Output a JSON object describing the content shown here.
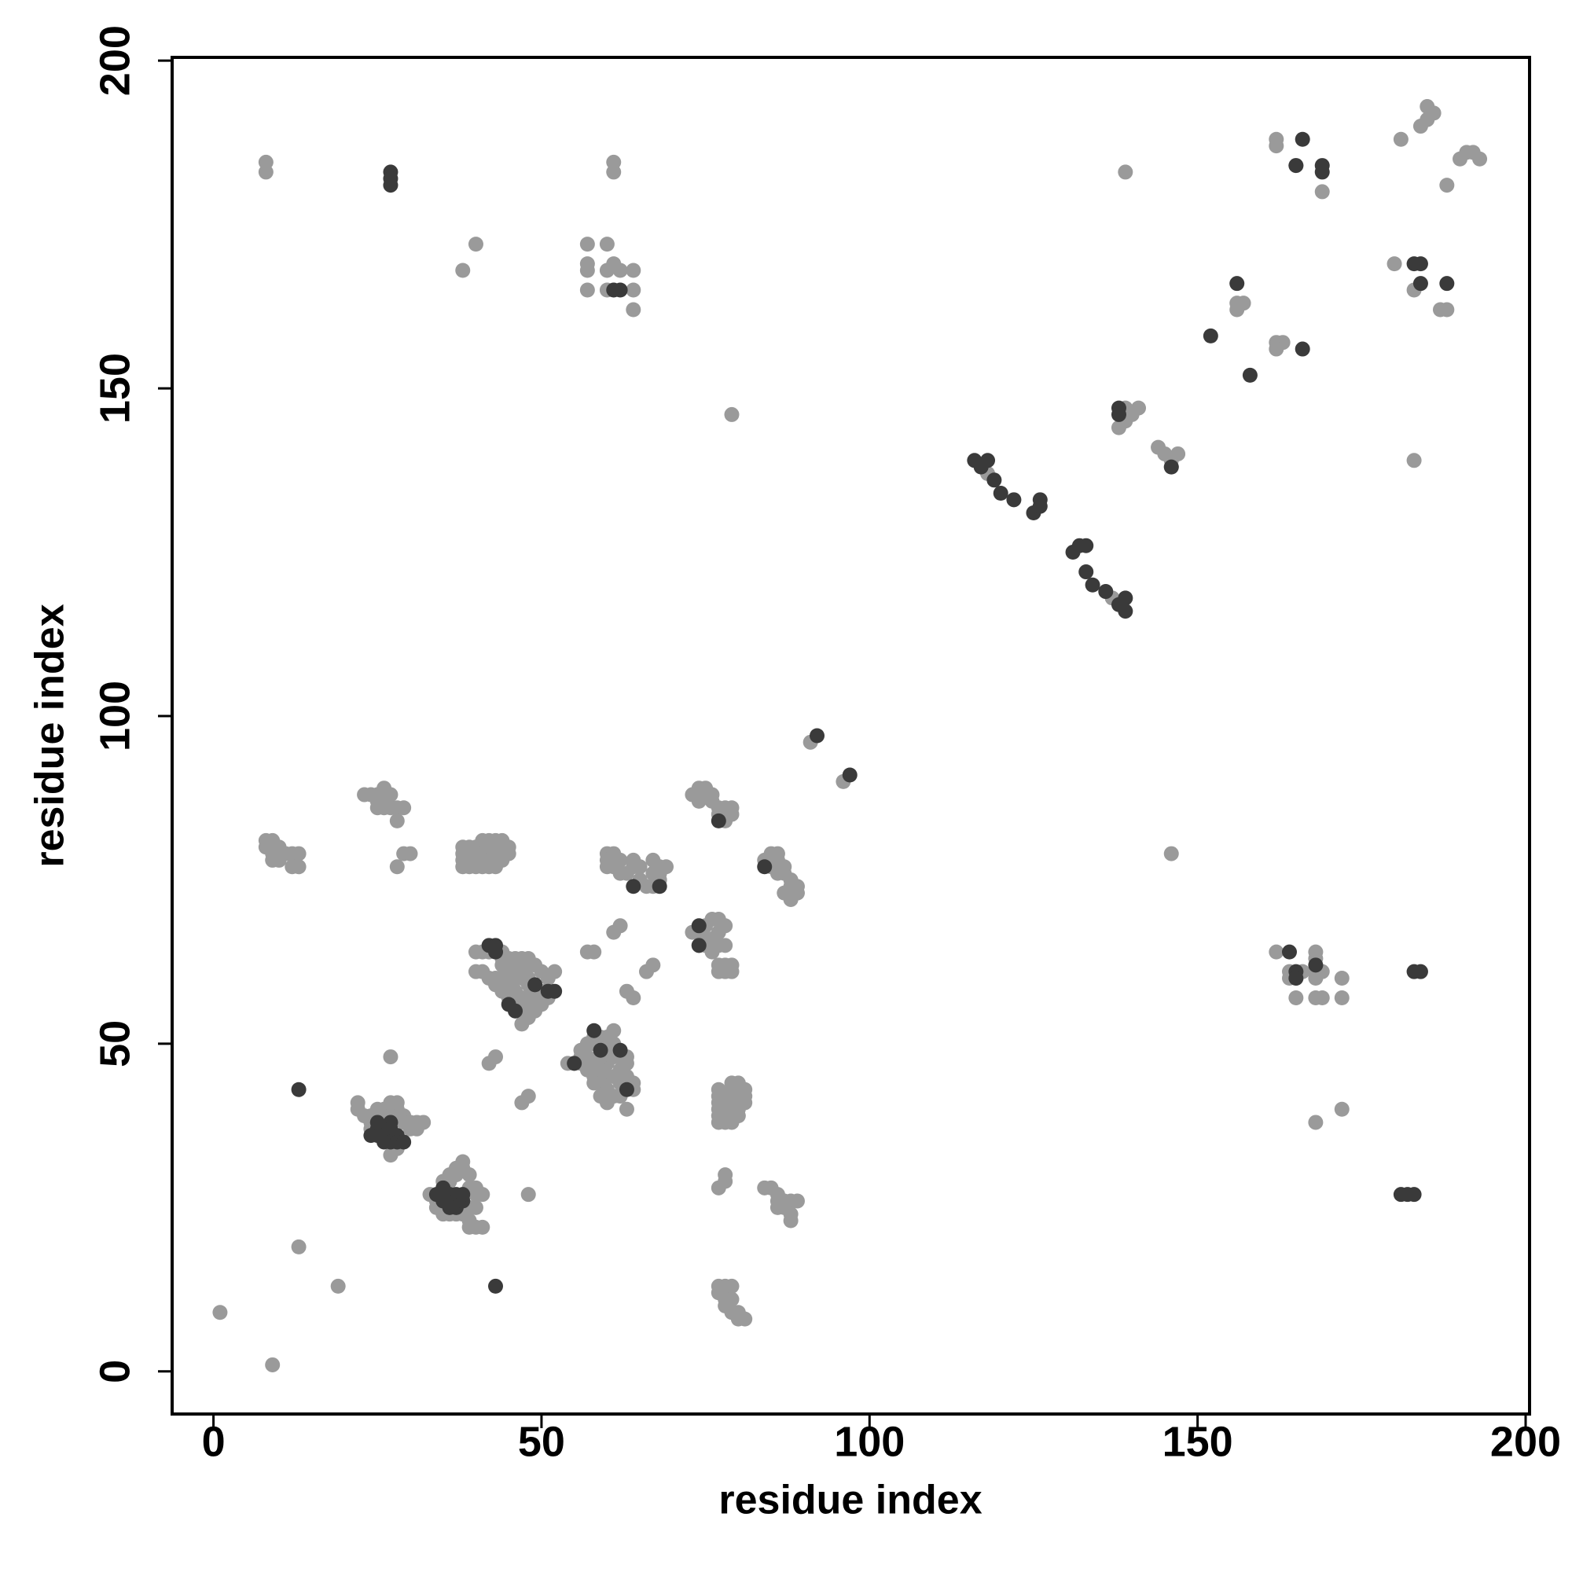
{
  "chart_data": {
    "type": "scatter",
    "xlabel": "residue index",
    "ylabel": "residue index",
    "xlim": [
      -6.3,
      200.6
    ],
    "ylim": [
      -6.5,
      200.5
    ],
    "xticks": [
      0,
      50,
      100,
      150,
      200
    ],
    "yticks": [
      0,
      50,
      100,
      150,
      200
    ],
    "series": [
      {
        "color": "#9a9a9a",
        "x": [
          8,
          8,
          9,
          1,
          13,
          19,
          40,
          38,
          57,
          60,
          57,
          57,
          57,
          61,
          62,
          64,
          64,
          64,
          60,
          60,
          61,
          61,
          79,
          139,
          162,
          162,
          165,
          169,
          181,
          185,
          186,
          184,
          185,
          188,
          190,
          191,
          192,
          193,
          180,
          183,
          187,
          188,
          156,
          157,
          156,
          162,
          163,
          162,
          183,
          146,
          138,
          139,
          140,
          141,
          139,
          144,
          145,
          146,
          147,
          146,
          118,
          137,
          91,
          96,
          40,
          41,
          42,
          43,
          44,
          40,
          41,
          42,
          43,
          44,
          45,
          46,
          47,
          48,
          45,
          46,
          47,
          48,
          49,
          50,
          51,
          52,
          43,
          44,
          45,
          46,
          47,
          48,
          49,
          50,
          46,
          47,
          48,
          47,
          44,
          45,
          46,
          47,
          48,
          49,
          50,
          45,
          46,
          49,
          51,
          50,
          44,
          47,
          48,
          48,
          55,
          56,
          56,
          57,
          58,
          57,
          58,
          59,
          60,
          58,
          59,
          60,
          61,
          59,
          60,
          61,
          62,
          62,
          63,
          63,
          61,
          61,
          61,
          60,
          59,
          57,
          57,
          58,
          59,
          60,
          62,
          63,
          64,
          64,
          63,
          56,
          54,
          58,
          59,
          60,
          62,
          63,
          42,
          43,
          47,
          48,
          27,
          22,
          22,
          23,
          24,
          24,
          25,
          26,
          27,
          28,
          28,
          29,
          29,
          30,
          31,
          32,
          27,
          26,
          30,
          31,
          27,
          28,
          27,
          24,
          25,
          33,
          34,
          34,
          35,
          35,
          36,
          37,
          37,
          38,
          38,
          39,
          39,
          40,
          40,
          41,
          36,
          37,
          38,
          39,
          39,
          40,
          41,
          38,
          39,
          40,
          36,
          35,
          48,
          8,
          8,
          9,
          9,
          10,
          10,
          11,
          12,
          13,
          12,
          13,
          9,
          23,
          24,
          25,
          25,
          26,
          26,
          26,
          27,
          27,
          28,
          28,
          29,
          25,
          28,
          29,
          30,
          41,
          42,
          43,
          44,
          38,
          39,
          40,
          41,
          42,
          43,
          44,
          45,
          38,
          39,
          40,
          41,
          42,
          43,
          44,
          45,
          38,
          39,
          40,
          41,
          42,
          43,
          44,
          38,
          39,
          40,
          41,
          42,
          43,
          60,
          61,
          60,
          61,
          62,
          60,
          61,
          64,
          64,
          65,
          67,
          68,
          69,
          67,
          68,
          65,
          66,
          68,
          67,
          62,
          63,
          61,
          62,
          57,
          58,
          66,
          67,
          63,
          64,
          73,
          74,
          75,
          75,
          74,
          75,
          76,
          76,
          77,
          78,
          77,
          77,
          78,
          77,
          78,
          79,
          77,
          78,
          79,
          76,
          73,
          74,
          75,
          75,
          76,
          76,
          77,
          78,
          79,
          79,
          78,
          77,
          74,
          84,
          85,
          86,
          86,
          87,
          86,
          87,
          88,
          89,
          89,
          88,
          87,
          88,
          85,
          77,
          77,
          77,
          77,
          77,
          77,
          78,
          78,
          78,
          78,
          78,
          79,
          79,
          79,
          79,
          79,
          79,
          79,
          80,
          80,
          80,
          80,
          80,
          80,
          81,
          81,
          81,
          78,
          78,
          77,
          84,
          85,
          86,
          86,
          86,
          87,
          88,
          88,
          88,
          89,
          87,
          77,
          77,
          78,
          78,
          79,
          78,
          78,
          79,
          80,
          80,
          81,
          79,
          162,
          164,
          164,
          165,
          165,
          166,
          168,
          168,
          168,
          168,
          169,
          168,
          169,
          172,
          172,
          168,
          172
        ],
        "values": [
          184.5,
          183,
          1,
          9,
          19,
          13,
          172,
          168,
          172,
          172,
          169,
          168,
          165,
          169,
          168,
          168,
          165,
          162,
          168,
          165,
          184.5,
          183,
          146,
          183,
          188,
          187,
          184,
          180,
          188,
          193,
          192,
          190,
          191,
          181,
          185,
          186,
          186,
          185,
          169,
          165,
          162,
          162,
          163,
          163,
          162,
          157,
          157,
          156,
          139,
          79,
          144,
          145,
          146,
          147,
          147,
          141,
          140,
          139,
          140,
          138,
          137,
          118,
          96,
          90,
          64,
          64,
          64,
          64,
          64,
          61,
          61,
          60,
          60,
          60,
          60,
          60,
          60,
          60,
          63,
          63,
          63,
          63,
          62,
          61,
          60,
          61,
          59,
          58,
          58,
          58,
          57,
          57,
          57,
          57,
          56,
          55,
          54,
          53,
          62,
          62,
          61,
          61,
          59,
          59,
          58,
          57,
          55,
          55,
          57,
          56,
          63,
          62,
          62,
          56,
          47,
          48,
          49,
          50,
          50,
          47,
          47,
          47,
          47,
          45,
          45,
          45,
          45,
          44,
          43,
          42,
          44,
          46,
          47,
          48,
          48,
          50,
          52,
          49,
          48,
          48,
          46,
          44,
          42,
          41,
          42,
          43,
          44,
          43,
          40,
          47,
          47,
          51,
          51,
          51,
          48,
          45,
          47,
          48,
          41,
          42,
          48,
          41,
          40,
          39,
          39,
          38,
          40,
          40,
          41,
          41,
          40,
          39,
          38,
          38,
          38,
          38,
          39,
          38,
          37,
          37,
          36,
          34,
          33,
          37,
          37,
          27,
          26,
          25,
          24,
          28,
          29,
          30,
          31,
          32,
          31,
          30,
          28,
          28,
          27,
          27,
          24,
          24,
          24,
          23,
          22,
          22,
          22,
          26,
          25,
          25,
          30,
          29,
          27,
          81,
          80,
          81,
          79,
          80,
          78,
          79,
          79,
          79,
          77,
          77,
          78,
          88,
          88,
          88,
          87,
          89,
          88,
          86,
          86,
          88,
          86,
          84,
          86,
          86,
          77,
          79,
          79,
          81,
          81,
          81,
          81,
          80,
          80,
          80,
          80,
          80,
          80,
          80,
          80,
          79,
          79,
          79,
          79,
          79,
          79,
          79,
          79,
          78,
          78,
          78,
          78,
          78,
          78,
          78,
          77,
          77,
          77,
          77,
          77,
          77,
          79,
          79,
          78,
          78,
          78,
          77,
          77,
          78,
          77,
          77,
          78,
          77,
          77,
          76,
          76,
          75,
          74,
          75,
          74,
          76,
          76,
          67,
          68,
          64,
          64,
          61,
          62,
          58,
          57,
          67,
          67,
          68,
          66,
          65,
          65,
          64,
          69,
          69,
          68,
          67,
          65,
          65,
          62,
          62,
          62,
          61,
          61,
          61,
          66,
          88,
          89,
          89,
          88,
          88,
          87,
          86,
          86,
          85,
          86,
          84,
          85,
          87,
          78,
          79,
          79,
          78,
          77,
          76,
          76,
          75,
          74,
          73,
          74,
          73,
          72,
          77,
          43,
          42,
          41,
          40,
          39,
          38,
          42,
          41,
          40,
          39,
          38,
          44,
          43,
          42,
          41,
          40,
          39,
          38,
          44,
          43,
          42,
          41,
          40,
          39,
          43,
          42,
          41,
          30,
          29,
          28,
          28,
          28,
          27,
          26,
          25,
          26,
          26,
          24,
          23,
          26,
          25,
          13,
          12,
          13,
          12,
          13,
          11,
          10,
          9,
          9,
          8,
          8,
          11,
          64,
          61,
          60,
          60,
          57,
          61,
          64,
          63,
          61,
          60,
          61,
          57,
          57,
          60,
          57,
          38,
          40
        ]
      },
      {
        "color": "#3a3a3a",
        "x": [
          27,
          27,
          27,
          61,
          62,
          166,
          165,
          169,
          169,
          183,
          184,
          184,
          188,
          156,
          152,
          158,
          166,
          138,
          138,
          146,
          116,
          117,
          118,
          119,
          120,
          122,
          125,
          126,
          126,
          131,
          132,
          133,
          133,
          134,
          136,
          139,
          139,
          138,
          92,
          97,
          77,
          84,
          64,
          68,
          74,
          74,
          42,
          43,
          43,
          46,
          49,
          51,
          52,
          45,
          58,
          59,
          55,
          62,
          63,
          13,
          43,
          25,
          25,
          26,
          26,
          26,
          27,
          27,
          27,
          28,
          28,
          29,
          24,
          25,
          35,
          35,
          35,
          36,
          36,
          36,
          37,
          37,
          37,
          38,
          38,
          34,
          164,
          165,
          165,
          168,
          183,
          184,
          181,
          182,
          183
        ],
        "values": [
          183,
          182,
          181,
          165,
          165,
          188,
          184,
          184,
          183,
          169,
          169,
          166,
          166,
          166,
          158,
          152,
          156,
          147,
          146,
          138,
          139,
          138,
          139,
          136,
          134,
          133,
          131,
          133,
          132,
          125,
          126,
          126,
          122,
          120,
          119,
          118,
          116,
          117,
          97,
          91,
          84,
          77,
          74,
          74,
          68,
          65,
          65,
          65,
          64,
          55,
          59,
          58,
          58,
          56,
          52,
          49,
          47,
          49,
          43,
          43,
          13,
          37,
          36,
          37,
          36,
          35,
          38,
          37,
          35,
          36,
          35,
          35,
          36,
          38,
          28,
          27,
          26,
          27,
          26,
          25,
          27,
          26,
          25,
          26,
          27,
          27,
          64,
          61,
          60,
          62,
          61,
          61,
          27,
          27,
          27
        ]
      }
    ]
  }
}
